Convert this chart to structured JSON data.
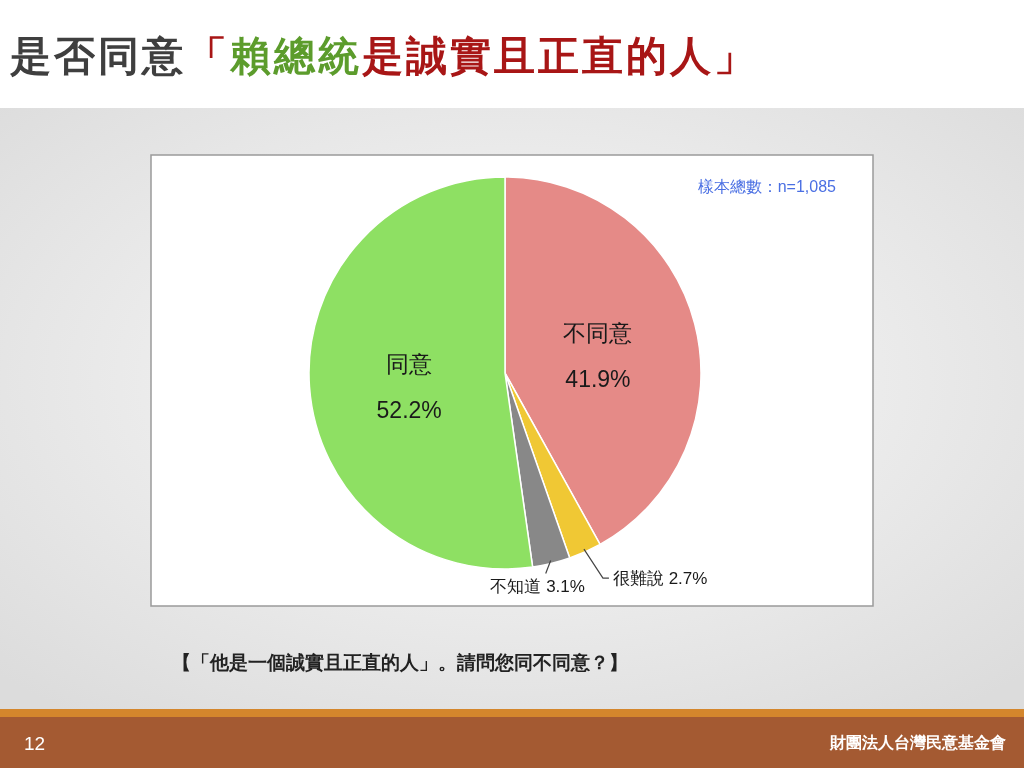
{
  "chart_data": {
    "type": "pie",
    "title": "是否同意「賴總統是誠實且正直的人」",
    "categories": [
      "不同意",
      "很難說",
      "不知道",
      "同意"
    ],
    "values": [
      41.9,
      2.7,
      3.1,
      52.2
    ],
    "colors": [
      "#e58a87",
      "#f0c834",
      "#888888",
      "#8ee063"
    ],
    "value_labels": [
      "41.9%",
      "2.7%",
      "3.1%",
      "52.2%"
    ],
    "annotations": [
      "樣本總數：n=1,085",
      "【「他是一個誠實且正直的人」。請問您同不同意？】",
      "12",
      "財團法人台灣民意基金會"
    ]
  }
}
